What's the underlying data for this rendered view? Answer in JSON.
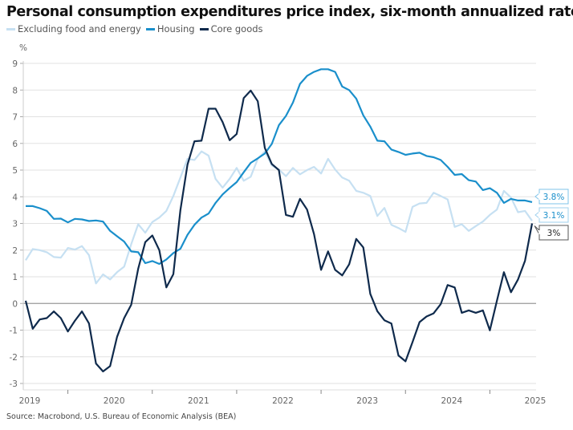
{
  "title": "Personal consumption expenditures price index, six-month annualized rate",
  "source": "Source: Macrobond, U.S. Bureau of Economic Analysis (BEA)",
  "chart_data": {
    "type": "line",
    "title": "Personal consumption expenditures price index, six-month annualized rate",
    "ylabel": "%",
    "ylim": [
      -3,
      9
    ],
    "yticks": [
      -3,
      -2,
      -1,
      0,
      1,
      2,
      3,
      4,
      5,
      6,
      7,
      8,
      9
    ],
    "xticks": [
      "2019",
      "2020",
      "2021",
      "2022",
      "2023",
      "2024",
      "2025"
    ],
    "grid": true,
    "legend_placement": "top-left",
    "x": [
      "2019-01",
      "2019-02",
      "2019-03",
      "2019-04",
      "2019-05",
      "2019-06",
      "2019-07",
      "2019-08",
      "2019-09",
      "2019-10",
      "2019-11",
      "2019-12",
      "2020-01",
      "2020-02",
      "2020-03",
      "2020-04",
      "2020-05",
      "2020-06",
      "2020-07",
      "2020-08",
      "2020-09",
      "2020-10",
      "2020-11",
      "2020-12",
      "2021-01",
      "2021-02",
      "2021-03",
      "2021-04",
      "2021-05",
      "2021-06",
      "2021-07",
      "2021-08",
      "2021-09",
      "2021-10",
      "2021-11",
      "2021-12",
      "2022-01",
      "2022-02",
      "2022-03",
      "2022-04",
      "2022-05",
      "2022-06",
      "2022-07",
      "2022-08",
      "2022-09",
      "2022-10",
      "2022-11",
      "2022-12",
      "2023-01",
      "2023-02",
      "2023-03",
      "2023-04",
      "2023-05",
      "2023-06",
      "2023-07",
      "2023-08",
      "2023-09",
      "2023-10",
      "2023-11",
      "2023-12",
      "2024-01",
      "2024-02",
      "2024-03",
      "2024-04",
      "2024-05",
      "2024-06",
      "2024-07",
      "2024-08",
      "2024-09",
      "2024-10",
      "2024-11",
      "2024-12",
      "2025-01"
    ],
    "series": [
      {
        "name": "Excluding food and energy",
        "color": "#c6e0f2",
        "end_label": "3.1%",
        "values": [
          1.62,
          2.04,
          2.0,
          1.92,
          1.74,
          1.72,
          2.08,
          2.02,
          2.15,
          1.81,
          0.75,
          1.09,
          0.9,
          1.17,
          1.38,
          2.22,
          2.97,
          2.65,
          3.05,
          3.22,
          3.47,
          4.03,
          4.72,
          5.42,
          5.38,
          5.7,
          5.54,
          4.67,
          4.34,
          4.67,
          5.08,
          4.6,
          4.75,
          5.42,
          5.7,
          5.17,
          5.02,
          4.77,
          5.08,
          4.84,
          5.0,
          5.12,
          4.87,
          5.42,
          5.02,
          4.72,
          4.6,
          4.22,
          4.15,
          4.03,
          3.28,
          3.58,
          2.95,
          2.83,
          2.68,
          3.62,
          3.75,
          3.77,
          4.15,
          4.03,
          3.9,
          2.87,
          2.97,
          2.72,
          2.9,
          3.07,
          3.32,
          3.52,
          4.22,
          3.97,
          3.42,
          3.47,
          3.1
        ]
      },
      {
        "name": "Housing",
        "color": "#1a8fcb",
        "end_label": "3.8%",
        "values": [
          3.65,
          3.65,
          3.57,
          3.47,
          3.17,
          3.18,
          3.04,
          3.17,
          3.15,
          3.09,
          3.11,
          3.07,
          2.72,
          2.52,
          2.32,
          1.95,
          1.92,
          1.51,
          1.59,
          1.48,
          1.65,
          1.89,
          2.05,
          2.57,
          2.95,
          3.22,
          3.37,
          3.77,
          4.09,
          4.33,
          4.55,
          4.92,
          5.27,
          5.44,
          5.62,
          5.98,
          6.68,
          7.03,
          7.53,
          8.23,
          8.53,
          8.68,
          8.78,
          8.78,
          8.68,
          8.13,
          8.0,
          7.68,
          7.05,
          6.63,
          6.1,
          6.08,
          5.77,
          5.68,
          5.57,
          5.62,
          5.65,
          5.53,
          5.48,
          5.38,
          5.12,
          4.82,
          4.85,
          4.62,
          4.57,
          4.25,
          4.32,
          4.15,
          3.77,
          3.92,
          3.86,
          3.86,
          3.8
        ]
      },
      {
        "name": "Core goods",
        "color": "#0f2a4c",
        "end_label": "3%",
        "values": [
          0.1,
          -0.95,
          -0.6,
          -0.55,
          -0.3,
          -0.55,
          -1.05,
          -0.65,
          -0.3,
          -0.75,
          -2.25,
          -2.55,
          -2.35,
          -1.25,
          -0.55,
          -0.05,
          1.3,
          2.3,
          2.55,
          2.0,
          0.6,
          1.1,
          3.5,
          5.2,
          6.08,
          6.1,
          7.3,
          7.3,
          6.8,
          6.12,
          6.35,
          7.7,
          7.98,
          7.58,
          5.83,
          5.23,
          5.0,
          3.32,
          3.25,
          3.92,
          3.52,
          2.6,
          1.26,
          1.95,
          1.26,
          1.05,
          1.47,
          2.42,
          2.1,
          0.36,
          -0.29,
          -0.63,
          -0.75,
          -1.95,
          -2.17,
          -1.45,
          -0.7,
          -0.49,
          -0.37,
          -0.03,
          0.69,
          0.6,
          -0.35,
          -0.26,
          -0.35,
          -0.26,
          -1.01,
          0.1,
          1.17,
          0.42,
          0.9,
          1.6,
          3.0
        ]
      }
    ]
  }
}
